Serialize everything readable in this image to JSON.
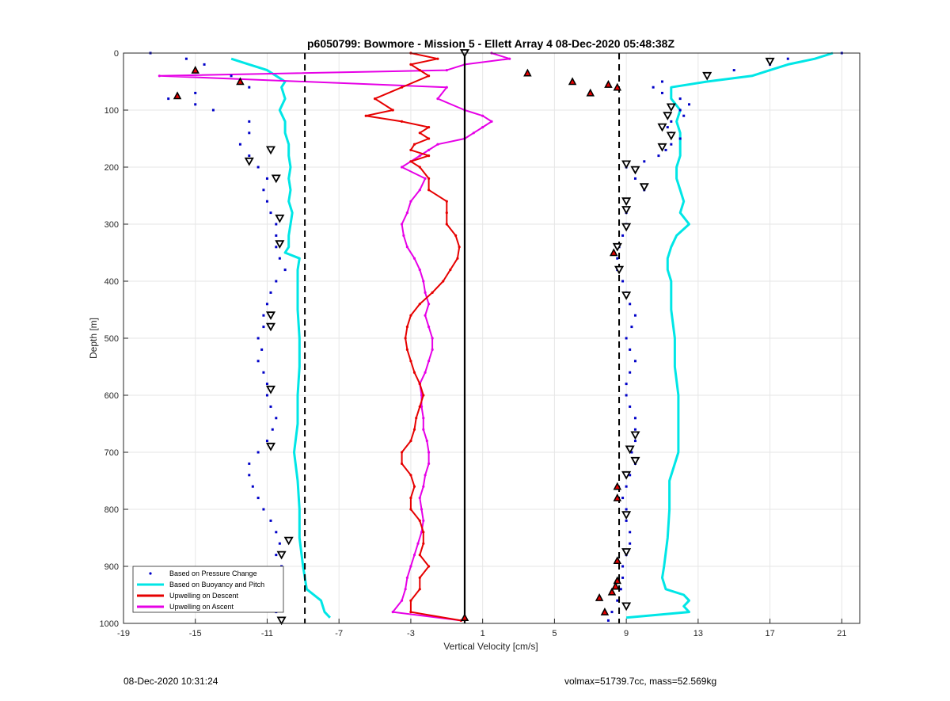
{
  "chart_data": {
    "type": "scatter",
    "title": "p6050799: Bowmore - Mission 5 - Ellett Array 4 08-Dec-2020 05:48:38Z",
    "xlabel": "Vertical Velocity [cm/s]",
    "ylabel": "Depth [m]",
    "xlim": [
      -19,
      22
    ],
    "ylim": [
      0,
      1000
    ],
    "y_reversed": true,
    "grid": true,
    "xticks": [
      -19,
      -15,
      -11,
      -7,
      -3,
      1,
      5,
      9,
      13,
      17,
      21
    ],
    "yticks": [
      0,
      100,
      200,
      300,
      400,
      500,
      600,
      700,
      800,
      900,
      1000
    ],
    "legend_position": "bottom-left",
    "reference_lines": {
      "zero": 0,
      "dashed": [
        -8.9,
        8.6
      ]
    },
    "series": [
      {
        "name": "Based on Pressure Change",
        "color": "#0000c8",
        "marker": "dot",
        "branches": [
          {
            "depth": [
              0,
              10,
              20,
              30,
              40,
              50,
              60,
              70,
              80,
              90,
              100,
              120,
              140,
              160,
              180,
              200,
              220,
              240,
              260,
              280,
              300,
              320,
              340,
              360,
              380,
              400,
              420,
              440,
              460,
              480,
              500,
              520,
              540,
              560,
              580,
              600,
              620,
              640,
              660,
              680,
              700,
              720,
              740,
              760,
              780,
              800,
              820,
              840,
              860,
              880,
              900,
              920,
              940,
              960,
              980,
              995
            ],
            "velocity": [
              -17.5,
              -15.5,
              -14.5,
              -15,
              -13,
              -12.5,
              -12,
              -15,
              -16.5,
              -15,
              -14,
              -12,
              -12,
              -12.5,
              -12,
              -11.5,
              -11,
              -11.2,
              -11,
              -10.8,
              -10.5,
              -10.5,
              -10.5,
              -10.3,
              -10,
              -10.5,
              -10.8,
              -11,
              -11.2,
              -11.2,
              -11.5,
              -11.3,
              -11.5,
              -11.2,
              -11,
              -11,
              -10.8,
              -10.5,
              -10.7,
              -11,
              -11.5,
              -12,
              -12,
              -11.8,
              -11.5,
              -11.2,
              -10.8,
              -10.5,
              -10.3,
              -10.5,
              -10.2,
              -10.5,
              -10.5,
              -10.3,
              -10.5,
              -10.2
            ]
          },
          {
            "depth": [
              0,
              10,
              20,
              30,
              40,
              50,
              60,
              70,
              80,
              90,
              100,
              110,
              120,
              130,
              140,
              150,
              160,
              170,
              180,
              190,
              200,
              220,
              240,
              260,
              280,
              300,
              320,
              340,
              360,
              380,
              400,
              420,
              440,
              460,
              480,
              500,
              520,
              540,
              560,
              580,
              600,
              620,
              640,
              660,
              680,
              700,
              720,
              740,
              760,
              780,
              800,
              820,
              840,
              860,
              880,
              900,
              920,
              940,
              960,
              980,
              995
            ],
            "velocity": [
              21,
              18,
              17,
              15,
              13.5,
              11,
              10.5,
              11,
              12,
              12.5,
              12,
              12.2,
              11.5,
              11.3,
              11.5,
              12,
              11.5,
              11.2,
              10.8,
              10,
              9,
              9.5,
              10,
              9,
              9,
              9,
              8.8,
              8.6,
              8.5,
              8.5,
              8.8,
              9,
              9.2,
              9.5,
              9.3,
              9,
              9.2,
              9.5,
              9.2,
              9,
              9,
              9.2,
              9.5,
              9.5,
              9.5,
              9.3,
              9.5,
              9.2,
              9,
              8.8,
              9,
              9,
              9.2,
              9.2,
              9,
              8.8,
              8.8,
              8.7,
              8.5,
              8.2,
              8
            ]
          }
        ]
      },
      {
        "name": "Based on Buoyancy and Pitch",
        "color": "#00e6e6",
        "marker": "line",
        "branches": [
          {
            "depth": [
              10,
              20,
              30,
              40,
              50,
              60,
              80,
              100,
              120,
              140,
              160,
              180,
              200,
              220,
              240,
              260,
              280,
              300,
              320,
              340,
              350,
              360,
              380,
              400,
              450,
              500,
              550,
              600,
              650,
              700,
              750,
              800,
              850,
              900,
              940,
              960,
              980,
              990
            ],
            "velocity": [
              -13,
              -12,
              -11,
              -10.5,
              -10,
              -10.2,
              -10,
              -10.3,
              -10,
              -10,
              -9.8,
              -9.8,
              -9.7,
              -9.8,
              -9.7,
              -9.8,
              -9.6,
              -9.7,
              -9.8,
              -9.8,
              -10,
              -9.2,
              -9.3,
              -9.3,
              -9.3,
              -9.2,
              -9.2,
              -9.3,
              -9.3,
              -9.5,
              -9.3,
              -9.2,
              -9.2,
              -9,
              -8.8,
              -8,
              -7.8,
              -7.5
            ]
          },
          {
            "depth": [
              0,
              10,
              20,
              30,
              40,
              50,
              60,
              80,
              100,
              120,
              140,
              160,
              180,
              200,
              220,
              240,
              260,
              280,
              300,
              320,
              340,
              360,
              380,
              400,
              450,
              500,
              550,
              600,
              650,
              700,
              750,
              800,
              850,
              900,
              920,
              940,
              950,
              960,
              970,
              980,
              990
            ],
            "velocity": [
              20.5,
              19.5,
              18,
              17,
              16,
              13.5,
              11.5,
              11.5,
              12,
              11.8,
              12,
              12,
              12,
              11.8,
              11.8,
              12,
              12.2,
              12,
              12.5,
              11.8,
              11.5,
              11.3,
              11.3,
              11.5,
              11.5,
              11.7,
              11.7,
              11.9,
              11.9,
              11.9,
              11.4,
              11.4,
              11.3,
              11.1,
              11,
              11.2,
              12.2,
              12.5,
              12.2,
              12.5,
              9
            ]
          }
        ]
      },
      {
        "name": "Upwelling on Descent",
        "color": "#e60000",
        "marker": "line",
        "depth": [
          0,
          10,
          20,
          30,
          40,
          60,
          80,
          100,
          110,
          120,
          130,
          140,
          150,
          160,
          170,
          180,
          190,
          200,
          220,
          240,
          260,
          280,
          300,
          320,
          340,
          360,
          380,
          400,
          420,
          440,
          460,
          480,
          500,
          520,
          540,
          560,
          580,
          600,
          620,
          640,
          660,
          680,
          700,
          720,
          740,
          760,
          780,
          800,
          820,
          840,
          860,
          880,
          900,
          920,
          940,
          960,
          980,
          995
        ],
        "velocity": [
          -3,
          -1.5,
          -3,
          -2.5,
          -2,
          -3.5,
          -5,
          -4,
          -5.5,
          -3.5,
          -2,
          -2.5,
          -2,
          -2.8,
          -3,
          -2,
          -3,
          -2.5,
          -2,
          -2,
          -1,
          -1,
          -1,
          -0.5,
          -0.3,
          -0.4,
          -0.8,
          -1.2,
          -1.8,
          -2.5,
          -3,
          -3.2,
          -3.3,
          -3.2,
          -3,
          -2.8,
          -2.5,
          -2.3,
          -2.5,
          -2.7,
          -2.8,
          -3,
          -3.5,
          -3.5,
          -3,
          -2.8,
          -3,
          -3,
          -2.5,
          -2.3,
          -2.3,
          -2.5,
          -2,
          -2.5,
          -2.5,
          -3,
          -3,
          -0.2
        ]
      },
      {
        "name": "Upwelling on Ascent",
        "color": "#e600e6",
        "marker": "line",
        "depth": [
          0,
          10,
          20,
          30,
          40,
          60,
          80,
          100,
          110,
          120,
          130,
          140,
          150,
          160,
          170,
          180,
          190,
          200,
          220,
          240,
          260,
          280,
          300,
          320,
          340,
          360,
          380,
          400,
          420,
          440,
          460,
          480,
          500,
          520,
          540,
          560,
          580,
          600,
          620,
          640,
          660,
          680,
          700,
          720,
          740,
          760,
          780,
          800,
          820,
          840,
          860,
          880,
          900,
          920,
          940,
          960,
          980,
          995
        ],
        "velocity": [
          1.5,
          2.5,
          0,
          -1,
          -17,
          -1,
          -1.5,
          0,
          1,
          1.5,
          1,
          0.5,
          0,
          -1.5,
          -2,
          -2.5,
          -3,
          -3.5,
          -2.2,
          -2.5,
          -3,
          -3.2,
          -3.5,
          -3.4,
          -3.2,
          -2.8,
          -2.5,
          -2.3,
          -2.2,
          -2,
          -2.2,
          -2,
          -1.8,
          -1.8,
          -2,
          -2.2,
          -2.5,
          -2.4,
          -2.4,
          -2.3,
          -2.3,
          -2.1,
          -2,
          -2,
          -2.2,
          -2.3,
          -2.5,
          -2.4,
          -2.3,
          -2.4,
          -2.6,
          -2.8,
          -3,
          -3.2,
          -3.3,
          -3.5,
          -4,
          -0.2
        ]
      }
    ],
    "markers": {
      "triangles_down_hollow": [
        [
          -10.8,
          170
        ],
        [
          -12,
          190
        ],
        [
          -10.5,
          220
        ],
        [
          -10.3,
          290
        ],
        [
          -10.3,
          335
        ],
        [
          -10.8,
          460
        ],
        [
          -10.8,
          480
        ],
        [
          -10.8,
          590
        ],
        [
          -10.8,
          690
        ],
        [
          -9.8,
          855
        ],
        [
          -10.2,
          880
        ],
        [
          -10.8,
          930
        ],
        [
          -11.3,
          938
        ],
        [
          -10.2,
          995
        ],
        [
          17,
          15
        ],
        [
          13.5,
          40
        ],
        [
          11.5,
          95
        ],
        [
          11.3,
          110
        ],
        [
          11,
          130
        ],
        [
          11.5,
          145
        ],
        [
          11,
          165
        ],
        [
          9,
          195
        ],
        [
          9.5,
          205
        ],
        [
          10,
          235
        ],
        [
          9,
          260
        ],
        [
          9,
          275
        ],
        [
          9,
          305
        ],
        [
          8.5,
          340
        ],
        [
          8.6,
          380
        ],
        [
          9,
          425
        ],
        [
          9.5,
          670
        ],
        [
          9.2,
          695
        ],
        [
          9.5,
          715
        ],
        [
          9,
          740
        ],
        [
          9,
          810
        ],
        [
          9,
          875
        ],
        [
          9,
          970
        ],
        [
          0,
          0
        ]
      ],
      "triangles_up_red": [
        [
          -15,
          30
        ],
        [
          -12.5,
          50
        ],
        [
          -16,
          75
        ],
        [
          3.5,
          35
        ],
        [
          6,
          50
        ],
        [
          8,
          55
        ],
        [
          8.5,
          60
        ],
        [
          7,
          70
        ],
        [
          8.3,
          350
        ],
        [
          8.5,
          760
        ],
        [
          8.5,
          780
        ],
        [
          8.5,
          890
        ],
        [
          8.5,
          925
        ],
        [
          8.4,
          935
        ],
        [
          8.2,
          945
        ],
        [
          7.5,
          955
        ],
        [
          7.8,
          980
        ],
        [
          0,
          990
        ]
      ]
    }
  },
  "footer": {
    "left": "08-Dec-2020 10:31:24",
    "right": "volmax=51739.7cc, mass=52.569kg"
  }
}
